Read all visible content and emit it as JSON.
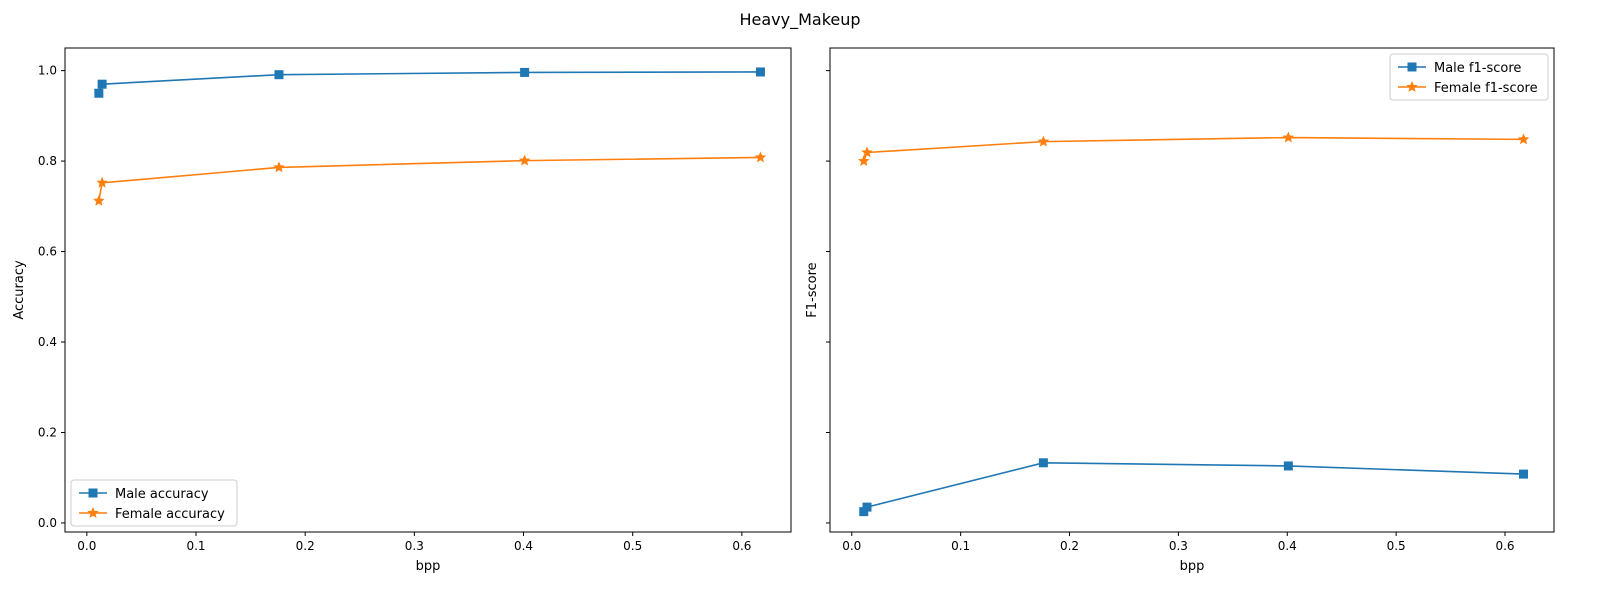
{
  "figure": {
    "title": "Heavy_Makeup"
  },
  "chart_data": [
    {
      "type": "line",
      "title": "",
      "xlabel": "bpp",
      "ylabel": "Accuracy",
      "xlim": [
        -0.02,
        0.645
      ],
      "ylim": [
        -0.02,
        1.05
      ],
      "xticks": [
        0.0,
        0.1,
        0.2,
        0.3,
        0.4,
        0.5,
        0.6
      ],
      "yticks": [
        0.0,
        0.2,
        0.4,
        0.6,
        0.8,
        1.0
      ],
      "grid": false,
      "legend": "lower-left",
      "series": [
        {
          "name": "Male accuracy",
          "color": "#1f77b4",
          "marker": "square",
          "x": [
            0.011,
            0.014,
            0.176,
            0.401,
            0.617
          ],
          "y": [
            0.95,
            0.97,
            0.991,
            0.996,
            0.997
          ]
        },
        {
          "name": "Female accuracy",
          "color": "#ff7f0e",
          "marker": "star",
          "x": [
            0.011,
            0.014,
            0.176,
            0.401,
            0.617
          ],
          "y": [
            0.712,
            0.752,
            0.786,
            0.801,
            0.808
          ]
        }
      ]
    },
    {
      "type": "line",
      "title": "",
      "xlabel": "bpp",
      "ylabel": "F1-score",
      "xlim": [
        -0.02,
        0.645
      ],
      "ylim": [
        -0.02,
        1.05
      ],
      "xticks": [
        0.0,
        0.1,
        0.2,
        0.3,
        0.4,
        0.5,
        0.6
      ],
      "yticks": [
        0.0,
        0.2,
        0.4,
        0.6,
        0.8,
        1.0
      ],
      "shared_y": true,
      "grid": false,
      "legend": "upper-right",
      "series": [
        {
          "name": "Male f1-score",
          "color": "#1f77b4",
          "marker": "square",
          "x": [
            0.011,
            0.014,
            0.176,
            0.401,
            0.617
          ],
          "y": [
            0.025,
            0.035,
            0.133,
            0.126,
            0.108
          ]
        },
        {
          "name": "Female f1-score",
          "color": "#ff7f0e",
          "marker": "star",
          "x": [
            0.011,
            0.014,
            0.176,
            0.401,
            0.617
          ],
          "y": [
            0.8,
            0.819,
            0.843,
            0.852,
            0.848
          ]
        }
      ]
    }
  ]
}
